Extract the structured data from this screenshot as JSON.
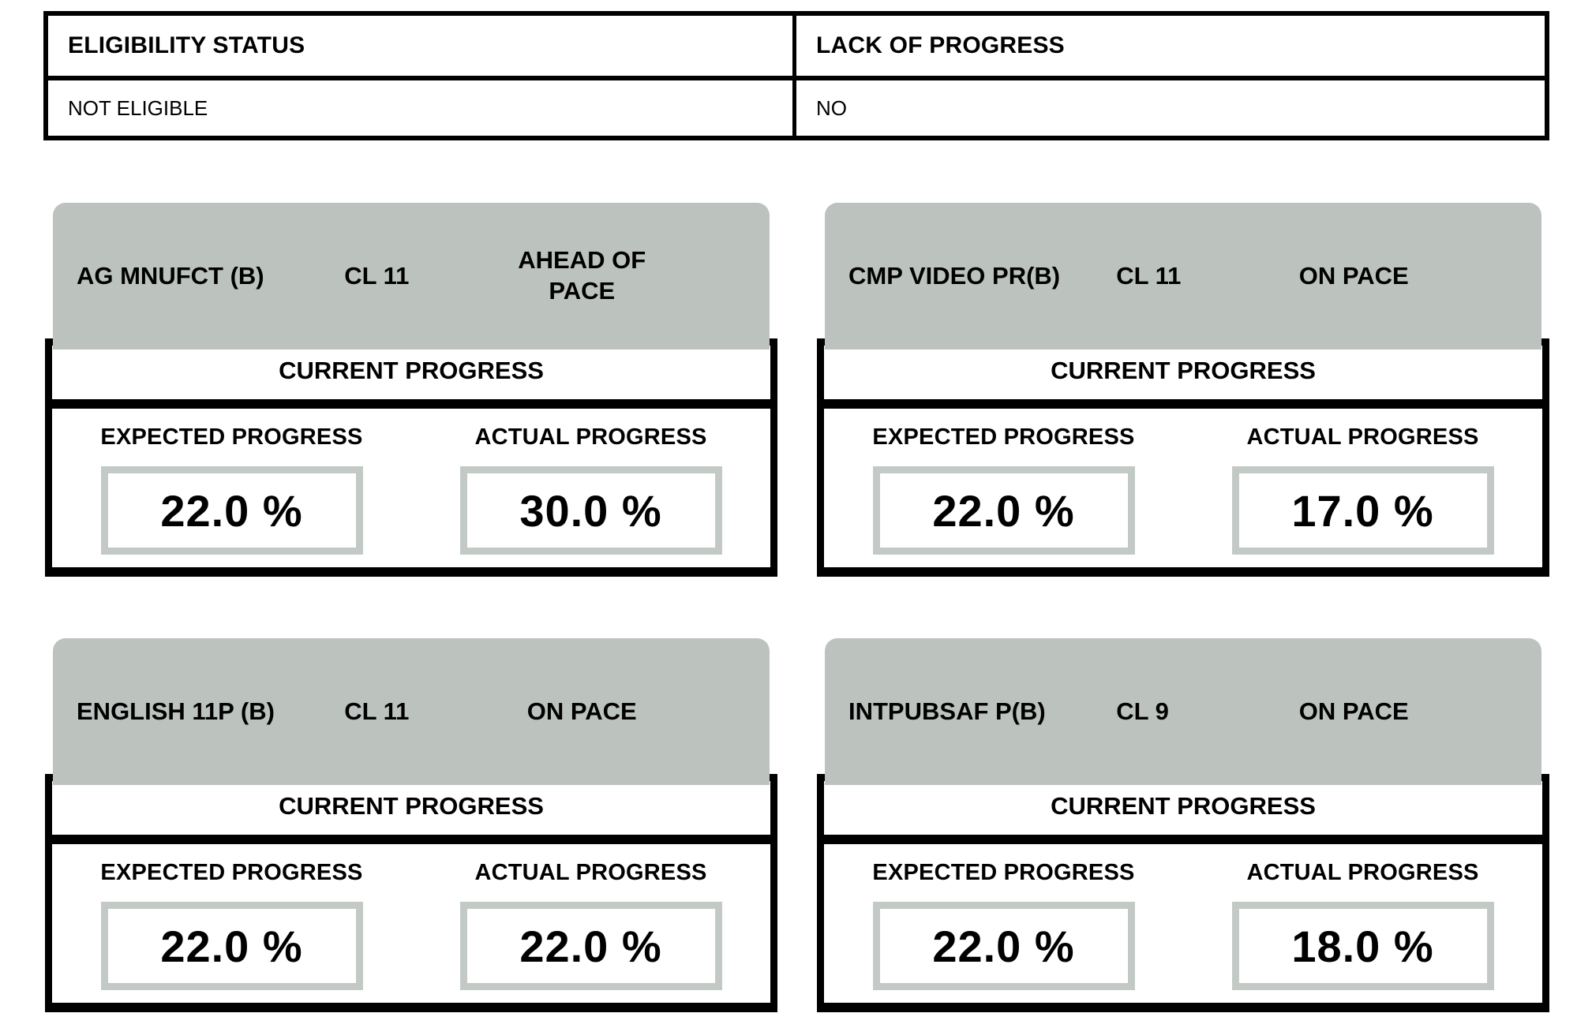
{
  "colors": {
    "card_header_gray": "#bcc3bf",
    "pct_box_border_gray": "#c3cac6",
    "border_black": "#000000",
    "background": "#ffffff"
  },
  "eligibility_table": {
    "headers": {
      "eligibility": "ELIGIBILITY STATUS",
      "lack_of_progress": "LACK OF PROGRESS"
    },
    "values": {
      "eligibility": "NOT ELIGIBLE",
      "lack_of_progress": "NO"
    }
  },
  "labels": {
    "current_progress": "CURRENT PROGRESS",
    "expected_progress": "EXPECTED PROGRESS",
    "actual_progress": "ACTUAL PROGRESS"
  },
  "courses": [
    {
      "name": "AG MNUFCT (B)",
      "class_level": "CL 11",
      "pace": "AHEAD OF PACE",
      "expected": "22.0 %",
      "actual": "30.0 %"
    },
    {
      "name": "CMP VIDEO PR(B)",
      "class_level": "CL 11",
      "pace": "ON PACE",
      "expected": "22.0 %",
      "actual": "17.0 %"
    },
    {
      "name": "ENGLISH 11P (B)",
      "class_level": "CL 11",
      "pace": "ON PACE",
      "expected": "22.0 %",
      "actual": "22.0 %"
    },
    {
      "name": "INTPUBSAF P(B)",
      "class_level": "CL 9",
      "pace": "ON PACE",
      "expected": "22.0 %",
      "actual": "18.0 %"
    }
  ]
}
